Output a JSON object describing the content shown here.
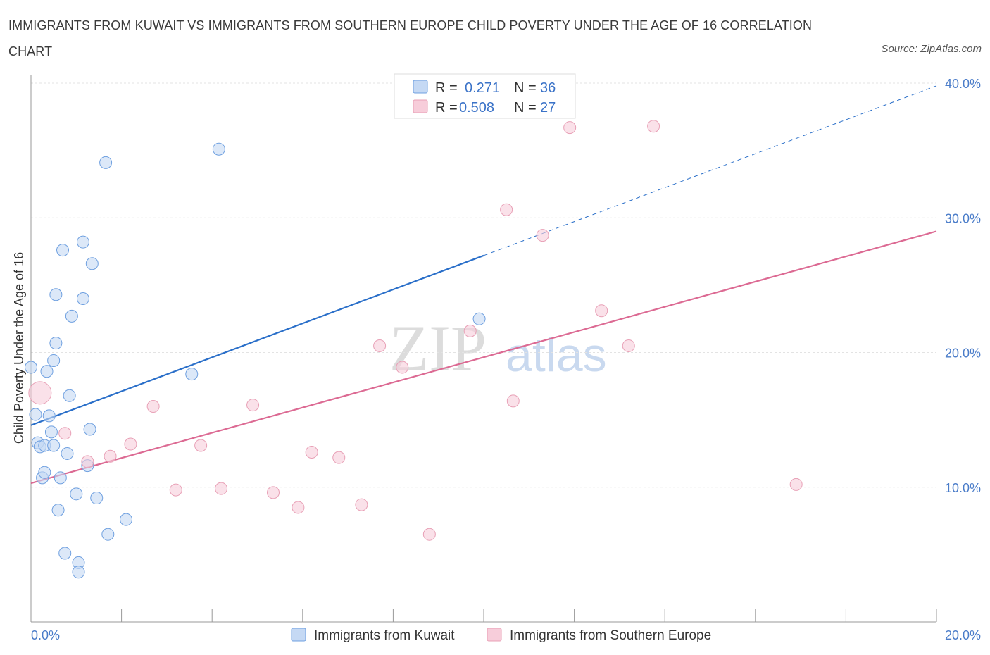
{
  "chart_data": {
    "type": "scatter",
    "title": "IMMIGRANTS FROM KUWAIT VS IMMIGRANTS FROM SOUTHERN EUROPE CHILD POVERTY UNDER THE AGE OF 16 CORRELATION CHART",
    "source": "Source: ZipAtlas.com",
    "ylabel": "Child Poverty Under the Age of 16",
    "xlim": [
      0,
      20
    ],
    "ylim": [
      0,
      40
    ],
    "x_tick_labels": [
      "0.0%",
      "20.0%"
    ],
    "y_ticks": [
      10,
      20,
      30,
      40
    ],
    "y_tick_labels": [
      "10.0%",
      "20.0%",
      "30.0%",
      "40.0%"
    ],
    "watermark": {
      "zip": "ZIP",
      "atlas": "atlas"
    },
    "legend": {
      "r_label": "R =",
      "n_label": "N =",
      "entries": [
        {
          "r": "0.271",
          "n": "36"
        },
        {
          "r": "0.508",
          "n": "27"
        }
      ]
    },
    "series": [
      {
        "name": "Immigrants from Kuwait",
        "color": "#6fa0e0",
        "fill": "#c5d9f4",
        "line_color": "#2a6fc9",
        "trend": {
          "x0": 0,
          "y0": 14.6,
          "x1": 10,
          "y1": 27.2,
          "dash_to_x": 20,
          "dash_to_y": 39.8
        },
        "points": [
          [
            0.0,
            18.9,
            1
          ],
          [
            0.1,
            15.4,
            1
          ],
          [
            0.15,
            13.3,
            1
          ],
          [
            0.2,
            13.0,
            1
          ],
          [
            0.25,
            10.7,
            1
          ],
          [
            0.3,
            13.1,
            1
          ],
          [
            0.3,
            11.1,
            1
          ],
          [
            0.35,
            18.6,
            1
          ],
          [
            0.4,
            15.3,
            1
          ],
          [
            0.45,
            14.1,
            1
          ],
          [
            0.5,
            19.4,
            1
          ],
          [
            0.5,
            13.1,
            1
          ],
          [
            0.55,
            20.7,
            1
          ],
          [
            0.55,
            24.3,
            1
          ],
          [
            0.6,
            8.3,
            1
          ],
          [
            0.65,
            10.7,
            1
          ],
          [
            0.7,
            27.6,
            1
          ],
          [
            0.75,
            5.1,
            1
          ],
          [
            0.8,
            12.5,
            1
          ],
          [
            0.85,
            16.8,
            1
          ],
          [
            0.9,
            22.7,
            1
          ],
          [
            1.0,
            9.5,
            1
          ],
          [
            1.05,
            4.4,
            1
          ],
          [
            1.05,
            3.7,
            1
          ],
          [
            1.15,
            28.2,
            1
          ],
          [
            1.15,
            24.0,
            1
          ],
          [
            1.25,
            11.6,
            1
          ],
          [
            1.3,
            14.3,
            1
          ],
          [
            1.35,
            26.6,
            1
          ],
          [
            1.45,
            9.2,
            1
          ],
          [
            1.65,
            34.1,
            1
          ],
          [
            1.7,
            6.5,
            1
          ],
          [
            2.1,
            7.6,
            1
          ],
          [
            3.55,
            18.4,
            1
          ],
          [
            4.15,
            35.1,
            1
          ],
          [
            9.9,
            22.5,
            1
          ]
        ]
      },
      {
        "name": "Immigrants from Southern Europe",
        "color": "#e8a0b6",
        "fill": "#f7cdda",
        "line_color": "#dc6a93",
        "trend": {
          "x0": 0,
          "y0": 10.3,
          "x1": 20,
          "y1": 29.0
        },
        "points": [
          [
            0.2,
            17.0,
            2
          ],
          [
            0.75,
            14.0,
            1
          ],
          [
            1.25,
            11.9,
            1
          ],
          [
            1.75,
            12.3,
            1
          ],
          [
            2.2,
            13.2,
            1
          ],
          [
            2.7,
            16.0,
            1
          ],
          [
            3.2,
            9.8,
            1
          ],
          [
            3.75,
            13.1,
            1
          ],
          [
            4.2,
            9.9,
            1
          ],
          [
            4.9,
            16.1,
            1
          ],
          [
            5.35,
            9.6,
            1
          ],
          [
            5.9,
            8.5,
            1
          ],
          [
            6.2,
            12.6,
            1
          ],
          [
            6.8,
            12.2,
            1
          ],
          [
            7.3,
            8.7,
            1
          ],
          [
            7.7,
            20.5,
            1
          ],
          [
            8.2,
            18.9,
            1
          ],
          [
            8.8,
            6.5,
            1
          ],
          [
            9.7,
            21.6,
            1
          ],
          [
            10.5,
            30.6,
            1
          ],
          [
            10.65,
            16.4,
            1
          ],
          [
            11.3,
            28.7,
            1
          ],
          [
            11.9,
            36.7,
            1
          ],
          [
            12.6,
            23.1,
            1
          ],
          [
            13.2,
            20.5,
            1
          ],
          [
            13.75,
            36.8,
            1
          ],
          [
            16.9,
            10.2,
            1
          ]
        ]
      }
    ]
  }
}
